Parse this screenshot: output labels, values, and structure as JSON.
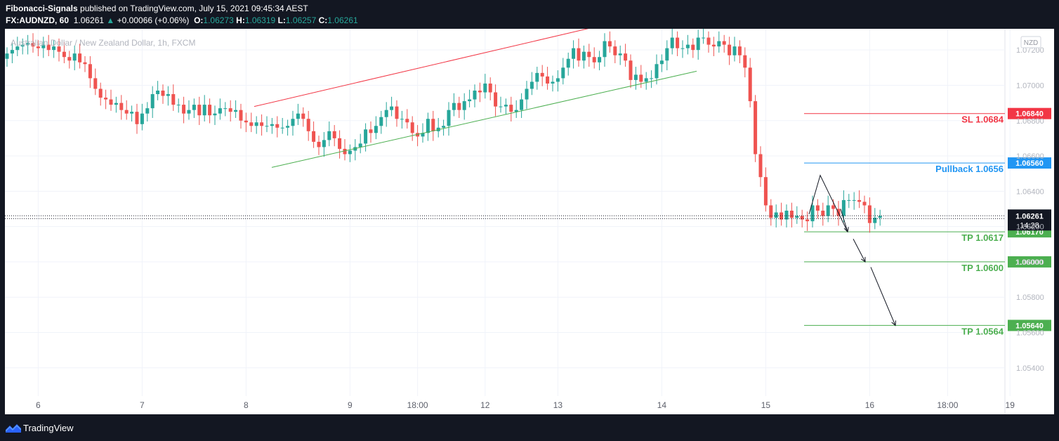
{
  "header": {
    "publisher": "Fibonacci-Signals",
    "published_text": " published on TradingView.com, July 15, 2021 09:45:34 AEST",
    "symbol_interval": "FX:AUDNZD, 60",
    "last_price": "1.06261",
    "change": "+0.00066 (+0.06%)",
    "o_label": "O:",
    "o_value": "1.06273",
    "h_label": "H:",
    "h_value": "1.06319",
    "l_label": "L:",
    "l_value": "1.06257",
    "c_label": "C:",
    "c_value": "1.06261"
  },
  "chart_data": {
    "type": "candlestick",
    "title": "Australian Dollar / New Zealand Dollar, 1h, FXCM",
    "currency_badge": "NZD",
    "y_ticks": [
      "1.07200",
      "1.07000",
      "1.06800",
      "1.06600",
      "1.06400",
      "1.06200",
      "1.06000",
      "1.05800",
      "1.05600",
      "1.05400"
    ],
    "y_tick_values": [
      1.072,
      1.07,
      1.068,
      1.066,
      1.064,
      1.062,
      1.06,
      1.058,
      1.056,
      1.054
    ],
    "ylim": [
      1.0524,
      1.0732
    ],
    "x_ticks": [
      {
        "label": "6",
        "i": 6
      },
      {
        "label": "7",
        "i": 26
      },
      {
        "label": "8",
        "i": 46
      },
      {
        "label": "9",
        "i": 66
      },
      {
        "label": "18:00",
        "i": 79
      },
      {
        "label": "12",
        "i": 92
      },
      {
        "label": "13",
        "i": 106
      },
      {
        "label": "14",
        "i": 126
      },
      {
        "label": "15",
        "i": 146
      },
      {
        "label": "16",
        "i": 166
      },
      {
        "label": "18:00",
        "i": 181
      },
      {
        "label": "19",
        "i": 193
      }
    ],
    "closes": [
      1.0718,
      1.072,
      1.0722,
      1.0723,
      1.0724,
      1.0722,
      1.0721,
      1.0723,
      1.072,
      1.0722,
      1.0719,
      1.0716,
      1.0714,
      1.0718,
      1.0713,
      1.0712,
      1.0704,
      1.0698,
      1.0693,
      1.0692,
      1.0689,
      1.069,
      1.0686,
      1.0684,
      1.0685,
      1.0678,
      1.0684,
      1.0687,
      1.0695,
      1.0697,
      1.0694,
      1.0695,
      1.0689,
      1.0689,
      1.0684,
      1.0686,
      1.0689,
      1.0683,
      1.0689,
      1.0683,
      1.0684,
      1.0687,
      1.0687,
      1.0685,
      1.0686,
      1.068,
      1.0679,
      1.0677,
      1.0679,
      1.0677,
      1.0677,
      1.0678,
      1.0676,
      1.0676,
      1.0677,
      1.0681,
      1.0684,
      1.0681,
      1.0674,
      1.0668,
      1.0665,
      1.0669,
      1.0674,
      1.067,
      1.0664,
      1.0661,
      1.0663,
      1.0665,
      1.0667,
      1.0675,
      1.0673,
      1.0677,
      1.0682,
      1.0686,
      1.0688,
      1.0681,
      1.0681,
      1.0679,
      1.0673,
      1.0671,
      1.0673,
      1.0681,
      1.0674,
      1.0676,
      1.0677,
      1.0686,
      1.069,
      1.0686,
      1.0691,
      1.0692,
      1.0697,
      1.0696,
      1.0701,
      1.0696,
      1.0688,
      1.0688,
      1.0689,
      1.0685,
      1.0686,
      1.0692,
      1.0698,
      1.0702,
      1.0707,
      1.0705,
      1.0701,
      1.0702,
      1.0704,
      1.071,
      1.0715,
      1.0721,
      1.0714,
      1.0719,
      1.0716,
      1.0713,
      1.0716,
      1.0725,
      1.0722,
      1.0717,
      1.0718,
      1.0714,
      1.0703,
      1.0706,
      1.0702,
      1.0704,
      1.0704,
      1.0712,
      1.0714,
      1.0721,
      1.0727,
      1.0721,
      1.0721,
      1.0723,
      1.072,
      1.0727,
      1.0727,
      1.0723,
      1.0722,
      1.0725,
      1.0723,
      1.0717,
      1.0722,
      1.0717,
      1.071,
      1.0691,
      1.0661,
      1.0648,
      1.0632,
      1.0625,
      1.0628,
      1.0624,
      1.0629,
      1.0625,
      1.0626,
      1.0624,
      1.0623,
      1.0632,
      1.0629,
      1.0626,
      1.0632,
      1.063,
      1.0626,
      1.0635,
      1.0635,
      1.0635,
      1.0634,
      1.0632,
      1.0622,
      1.0625,
      1.0626
    ],
    "annotations": {
      "sl": {
        "value": 1.0684,
        "label": "SL 1.0684",
        "badge": "1.06840",
        "color": "#f23645"
      },
      "pullback": {
        "value": 1.0656,
        "label": "Pullback 1.0656",
        "badge": "1.06560",
        "color": "#2196f3"
      },
      "tp1": {
        "value": 1.0617,
        "label": "TP 1.0617",
        "badge": "1.06170",
        "color": "#4caf50"
      },
      "tp2": {
        "value": 1.06,
        "label": "TP 1.0600",
        "badge": "1.06000",
        "color": "#4caf50"
      },
      "tp3": {
        "value": 1.0564,
        "label": "TP 1.0564",
        "badge": "1.05640",
        "color": "#4caf50"
      },
      "current": {
        "value": 1.06261,
        "badge": "1.06261",
        "countdown": "14:28"
      }
    },
    "colors": {
      "up": "#26a69a",
      "down": "#ef5350",
      "channel_top": "#f23645",
      "channel_bottom": "#4caf50"
    }
  },
  "footer": {
    "brand": "TradingView"
  }
}
